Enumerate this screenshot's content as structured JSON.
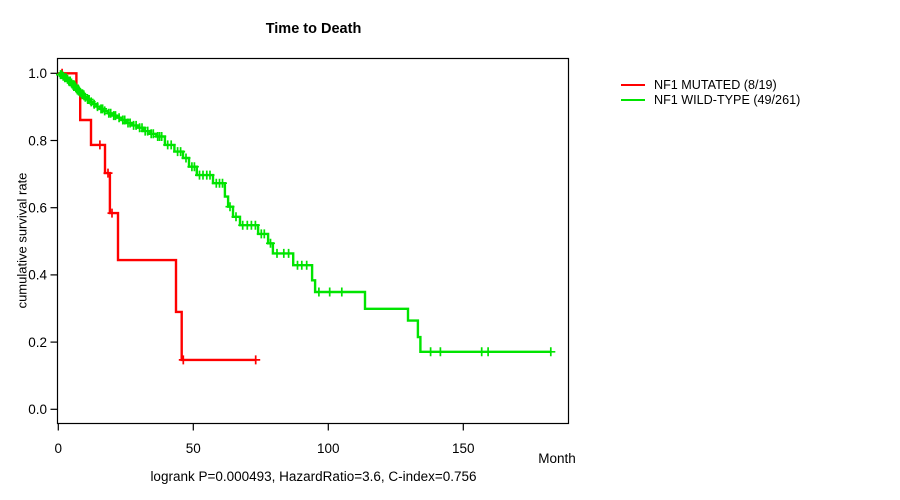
{
  "title": "Time to Death",
  "footer": "logrank P=0.000493, HazardRatio=3.6, C-index=0.756",
  "axes": {
    "x_label": "Month",
    "y_label": "cumulative survival rate",
    "x_ticks": [
      0,
      50,
      100,
      150
    ],
    "y_ticks": [
      "0.0",
      "0.2",
      "0.4",
      "0.6",
      "0.8",
      "1.0"
    ]
  },
  "legend": [
    {
      "label": "NF1 MUTATED (8/19)",
      "color": "#ff0000"
    },
    {
      "label": "NF1 WILD-TYPE (49/261)",
      "color": "#00e400"
    }
  ],
  "chart_data": {
    "type": "line",
    "subtype": "kaplan-meier-step",
    "title": "Time to Death",
    "xlabel": "Month",
    "ylabel": "cumulative survival rate",
    "xlim": [
      0,
      190
    ],
    "ylim": [
      0.0,
      1.0
    ],
    "grid": false,
    "legend_position": "right-outside",
    "annotation": "logrank P=0.000493, HazardRatio=3.6, C-index=0.756",
    "series": [
      {
        "name": "NF1 MUTATED (8/19)",
        "color": "#ff0000",
        "end_time": 73.4,
        "steps": [
          [
            0,
            1.0
          ],
          [
            6.7,
            0.947
          ],
          [
            8.1,
            0.861
          ],
          [
            12.1,
            0.787
          ],
          [
            17.3,
            0.703
          ],
          [
            19.1,
            0.584
          ],
          [
            22.1,
            0.444
          ],
          [
            43.6,
            0.29
          ],
          [
            45.7,
            0.147
          ]
        ],
        "censor_times": [
          1.4,
          15.4,
          18.4,
          19.9,
          46.3,
          73.1
        ]
      },
      {
        "name": "NF1 WILD-TYPE (49/261)",
        "color": "#00e400",
        "end_time": 182.5,
        "steps": [
          [
            0,
            1.0
          ],
          [
            0.6,
            0.996
          ],
          [
            1.4,
            0.991
          ],
          [
            2.2,
            0.987
          ],
          [
            3,
            0.982
          ],
          [
            3.8,
            0.977
          ],
          [
            4.6,
            0.971
          ],
          [
            5.4,
            0.964
          ],
          [
            6.2,
            0.957
          ],
          [
            7,
            0.95
          ],
          [
            7.8,
            0.943
          ],
          [
            8.7,
            0.936
          ],
          [
            9.6,
            0.929
          ],
          [
            10.6,
            0.922
          ],
          [
            11.7,
            0.915
          ],
          [
            12.9,
            0.908
          ],
          [
            14.1,
            0.901
          ],
          [
            15.4,
            0.894
          ],
          [
            16.8,
            0.888
          ],
          [
            18.3,
            0.881
          ],
          [
            19.9,
            0.874
          ],
          [
            21.6,
            0.868
          ],
          [
            23.4,
            0.861
          ],
          [
            25.3,
            0.852
          ],
          [
            27.3,
            0.845
          ],
          [
            29.4,
            0.838
          ],
          [
            31.6,
            0.828
          ],
          [
            33.9,
            0.82
          ],
          [
            36.3,
            0.812
          ],
          [
            39.5,
            0.787
          ],
          [
            43,
            0.767
          ],
          [
            46.2,
            0.748
          ],
          [
            48.4,
            0.722
          ],
          [
            51.3,
            0.697
          ],
          [
            57.3,
            0.673
          ],
          [
            61.7,
            0.633
          ],
          [
            62.9,
            0.603
          ],
          [
            64.7,
            0.573
          ],
          [
            67.3,
            0.548
          ],
          [
            74,
            0.522
          ],
          [
            77.7,
            0.494
          ],
          [
            79.5,
            0.464
          ],
          [
            87,
            0.429
          ],
          [
            94,
            0.384
          ],
          [
            95.1,
            0.349
          ],
          [
            113.6,
            0.299
          ],
          [
            129.5,
            0.264
          ],
          [
            133.2,
            0.215
          ],
          [
            134.1,
            0.171
          ]
        ],
        "censor_times": [
          0.8,
          1.2,
          1.8,
          2.4,
          2.9,
          3.4,
          3.9,
          4.4,
          4.9,
          5.5,
          6,
          6.5,
          7.1,
          7.6,
          8.2,
          8.9,
          9.4,
          10,
          10.9,
          11.4,
          12.2,
          13.3,
          14.5,
          15.8,
          16.4,
          17.2,
          18.7,
          19.4,
          20.5,
          21.2,
          22.5,
          23.9,
          24.6,
          25.8,
          26.6,
          27.9,
          28.8,
          30.1,
          31,
          32.2,
          33.1,
          34.4,
          35.2,
          36.8,
          37.5,
          38.3,
          40.5,
          41.8,
          44.2,
          45.3,
          47.3,
          49.5,
          50.4,
          52.3,
          53.6,
          55,
          56.2,
          58.5,
          59.7,
          60.8,
          63.6,
          65.8,
          68.3,
          70,
          71.5,
          73,
          75.2,
          76.3,
          78.6,
          81,
          83.5,
          85.3,
          88.6,
          90.2,
          92,
          96.5,
          100.5,
          105,
          137.9,
          141.5,
          156.8,
          159.2,
          182.4
        ]
      }
    ]
  }
}
